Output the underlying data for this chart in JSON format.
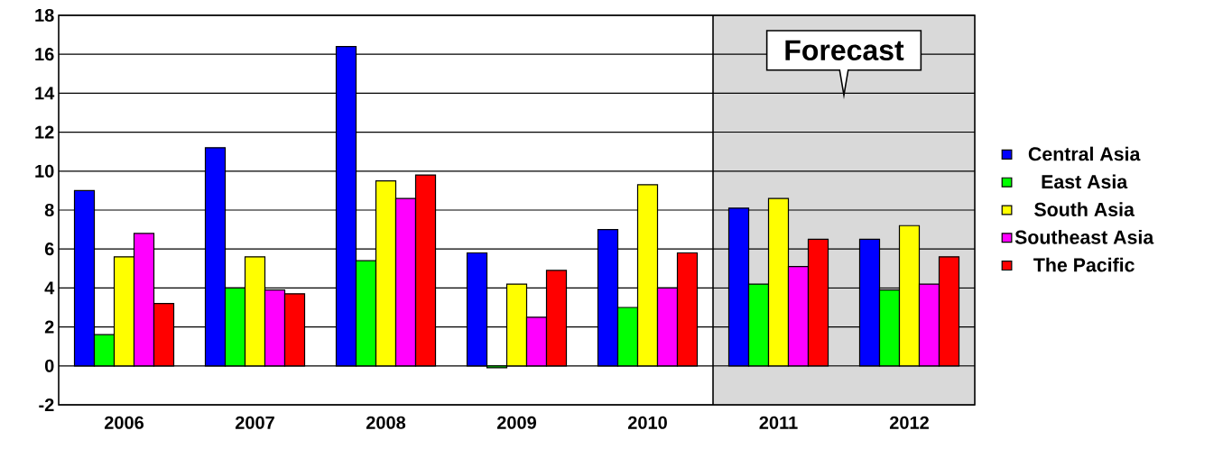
{
  "chart_data": {
    "type": "bar",
    "categories": [
      "2006",
      "2007",
      "2008",
      "2009",
      "2010",
      "2011",
      "2012"
    ],
    "series": [
      {
        "name": "Central Asia",
        "color": "#0000ff",
        "values": [
          9.0,
          11.2,
          16.4,
          5.8,
          7.0,
          8.1,
          6.5
        ]
      },
      {
        "name": "East Asia",
        "color": "#00ff00",
        "values": [
          1.6,
          4.0,
          5.4,
          -0.1,
          3.0,
          4.2,
          3.9
        ]
      },
      {
        "name": "South Asia",
        "color": "#ffff00",
        "values": [
          5.6,
          5.6,
          9.5,
          4.2,
          9.3,
          8.6,
          7.2
        ]
      },
      {
        "name": "Southeast Asia",
        "color": "#ff00ff",
        "values": [
          6.8,
          3.9,
          8.6,
          2.5,
          4.0,
          5.1,
          4.2
        ]
      },
      {
        "name": "The Pacific",
        "color": "#ff0000",
        "values": [
          3.2,
          3.7,
          9.8,
          4.9,
          5.8,
          6.5,
          5.6
        ]
      }
    ],
    "ylim": [
      -2,
      18
    ],
    "yticks": [
      -2,
      0,
      2,
      4,
      6,
      8,
      10,
      12,
      14,
      16,
      18
    ],
    "grid": "y",
    "legend": "right",
    "bands": [
      {
        "axis": "x",
        "from": "2011",
        "to": "2012",
        "label": "Forecast",
        "color": "#d9d9d9"
      }
    ]
  }
}
